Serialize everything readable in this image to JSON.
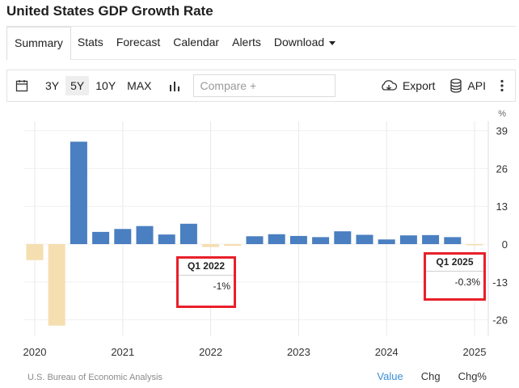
{
  "title": "United States GDP Growth Rate",
  "tabs": [
    {
      "label": "Summary"
    },
    {
      "label": "Stats"
    },
    {
      "label": "Forecast"
    },
    {
      "label": "Calendar"
    },
    {
      "label": "Alerts"
    },
    {
      "label": "Download"
    }
  ],
  "toolbar": {
    "ranges": [
      "3Y",
      "5Y",
      "10Y",
      "MAX"
    ],
    "selected_range": "5Y",
    "compare_placeholder": "Compare +",
    "export_label": "Export",
    "api_label": "API"
  },
  "chart_data": {
    "type": "bar",
    "unit": "%",
    "x": [
      "Q1 2020",
      "Q2 2020",
      "Q3 2020",
      "Q4 2020",
      "Q1 2021",
      "Q2 2021",
      "Q3 2021",
      "Q4 2021",
      "Q1 2022",
      "Q2 2022",
      "Q3 2022",
      "Q4 2022",
      "Q1 2023",
      "Q2 2023",
      "Q3 2023",
      "Q4 2023",
      "Q1 2024",
      "Q2 2024",
      "Q3 2024",
      "Q4 2024",
      "Q1 2025"
    ],
    "values": [
      -5.5,
      -28.0,
      35.2,
      4.2,
      5.2,
      6.2,
      3.3,
      7.0,
      -1.0,
      -0.6,
      2.7,
      3.4,
      2.8,
      2.4,
      4.4,
      3.2,
      1.6,
      3.0,
      3.1,
      2.4,
      -0.3
    ],
    "x_tick_labels": [
      "2020",
      "2021",
      "2022",
      "2023",
      "2024",
      "2025"
    ],
    "y_ticks": [
      39,
      26,
      13,
      0,
      -13,
      -26
    ],
    "ylim": [
      -30,
      42
    ],
    "colors": {
      "positive": "#4a7fc1",
      "negative": "#f5deb0",
      "grid": "#e8e8e8"
    },
    "annotations": [
      {
        "label": "Q1 2022",
        "value": "-1%"
      },
      {
        "label": "Q1 2025",
        "value": "-0.3%"
      }
    ]
  },
  "source": "U.S. Bureau of Economic Analysis",
  "footer_buttons": [
    {
      "label": "Value",
      "active": true
    },
    {
      "label": "Chg",
      "active": false
    },
    {
      "label": "Chg%",
      "active": false
    }
  ]
}
